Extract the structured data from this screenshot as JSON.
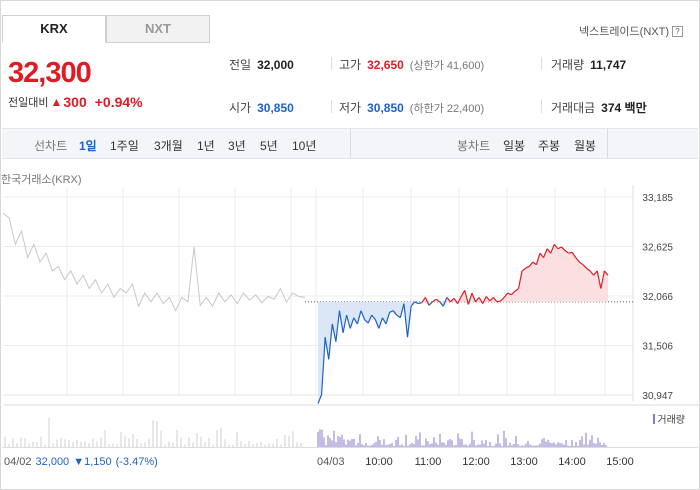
{
  "tabs": {
    "active": "KRX",
    "inactive": "NXT"
  },
  "nextrade": {
    "label": "넥스트레이드(NXT)",
    "help": "?"
  },
  "price": {
    "current": "32,300",
    "change_label": "전일대비",
    "change_abs": "300",
    "change_pct": "+0.94%"
  },
  "stats": {
    "prev_close_label": "전일",
    "prev_close": "32,000",
    "high_label": "고가",
    "high": "32,650",
    "upper_limit": "(상한가 41,600)",
    "volume_label": "거래량",
    "volume": "11,747",
    "open_label": "시가",
    "open": "30,850",
    "low_label": "저가",
    "low": "30,850",
    "lower_limit": "(하한가 22,400)",
    "amount_label": "거래대금",
    "amount": "374 백만"
  },
  "period_bar": {
    "line_label": "선차트",
    "line_periods": [
      "1일",
      "1주일",
      "3개월",
      "1년",
      "3년",
      "5년",
      "10년"
    ],
    "selected": "1일",
    "candle_label": "봉차트",
    "candle_periods": [
      "일봉",
      "주봉",
      "월봉"
    ]
  },
  "colors": {
    "up": "#e01b24",
    "down": "#1d62c9",
    "prev_day": "#c8c8c8",
    "volume": "#8a78c8"
  },
  "chart_data": {
    "type": "line",
    "title": "한국거래소(KRX)",
    "y_ticks": [
      "33,185",
      "32,625",
      "32,066",
      "31,506",
      "30,947"
    ],
    "ylim": [
      30947,
      33185
    ],
    "baseline": 32000,
    "legend": "거래량",
    "prev_day": {
      "date": "04/02",
      "close": "32,000",
      "change": "1,150",
      "change_pct": "(-3.47%)",
      "values": [
        33000,
        32950,
        32650,
        32800,
        32500,
        32650,
        32450,
        32550,
        32350,
        32400,
        32250,
        32350,
        32200,
        32300,
        32150,
        32250,
        32100,
        32200,
        32050,
        32150,
        32100,
        32200,
        31950,
        32100,
        32000,
        32100,
        31980,
        32050,
        31900,
        32050,
        32000,
        32620,
        31960,
        32050,
        31950,
        32100,
        32000,
        32080,
        31980,
        32100,
        32020,
        32080,
        31990,
        32060,
        32030,
        32150,
        32000,
        32100,
        32060,
        32050
      ]
    },
    "today": {
      "date": "04/03",
      "x_labels": [
        "10:00",
        "11:00",
        "12:00",
        "13:00",
        "14:00",
        "15:00"
      ],
      "values": [
        30850,
        30950,
        31600,
        31350,
        31750,
        31550,
        31900,
        31650,
        31850,
        31700,
        31820,
        31750,
        31900,
        31800,
        31760,
        31850,
        31800,
        31700,
        31820,
        31750,
        31880,
        31900,
        31850,
        31820,
        31980,
        31600,
        31950,
        32000,
        31980,
        31990,
        32050,
        31960,
        32000,
        32030,
        32000,
        31950,
        32050,
        32000,
        32040,
        31980,
        32060,
        32130,
        31970,
        32100,
        32000,
        32050,
        31980,
        32060,
        32010,
        32050,
        32000,
        32010,
        32050,
        32100,
        32080,
        32120,
        32150,
        32350,
        32380,
        32400,
        32450,
        32420,
        32550,
        32500,
        32600,
        32550,
        32650,
        32600,
        32620,
        32580,
        32550,
        32560,
        32500,
        32450,
        32420,
        32380,
        32350,
        32300,
        32350,
        32150,
        32350,
        32300
      ]
    }
  }
}
